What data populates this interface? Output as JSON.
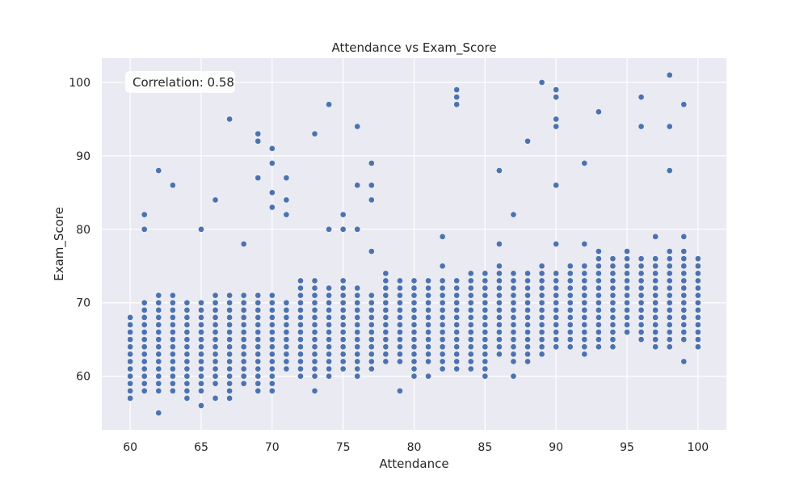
{
  "chart_data": {
    "type": "scatter",
    "title": "Attendance vs Exam_Score",
    "xlabel": "Attendance",
    "ylabel": "Exam_Score",
    "xlim": [
      58.0,
      102.0
    ],
    "ylim": [
      52.7,
      103.3
    ],
    "xticks": [
      60,
      65,
      70,
      75,
      80,
      85,
      90,
      95,
      100
    ],
    "yticks": [
      60,
      70,
      80,
      90,
      100
    ],
    "grid": true,
    "annotation": "Correlation: 0.58",
    "colors": {
      "background": "#eaeaf2",
      "grid": "#ffffff",
      "point": "#4c72b0",
      "annotation_box": "#ffffff"
    },
    "band_ranges": [
      [
        60,
        57,
        68
      ],
      [
        61,
        58,
        70
      ],
      [
        62,
        58,
        71
      ],
      [
        63,
        58,
        71
      ],
      [
        64,
        57,
        70
      ],
      [
        65,
        58,
        70
      ],
      [
        66,
        59,
        71
      ],
      [
        67,
        58,
        71
      ],
      [
        68,
        59,
        71
      ],
      [
        69,
        58,
        71
      ],
      [
        70,
        58,
        71
      ],
      [
        71,
        61,
        70
      ],
      [
        72,
        60,
        73
      ],
      [
        73,
        60,
        73
      ],
      [
        74,
        60,
        72
      ],
      [
        75,
        61,
        73
      ],
      [
        76,
        60,
        72
      ],
      [
        77,
        61,
        71
      ],
      [
        78,
        62,
        74
      ],
      [
        79,
        62,
        73
      ],
      [
        80,
        61,
        73
      ],
      [
        81,
        62,
        73
      ],
      [
        82,
        61,
        73
      ],
      [
        83,
        61,
        73
      ],
      [
        84,
        61,
        74
      ],
      [
        85,
        61,
        74
      ],
      [
        86,
        63,
        75
      ],
      [
        87,
        62,
        74
      ],
      [
        88,
        62,
        74
      ],
      [
        89,
        63,
        75
      ],
      [
        90,
        64,
        74
      ],
      [
        91,
        64,
        75
      ],
      [
        92,
        64,
        75
      ],
      [
        93,
        64,
        77
      ],
      [
        94,
        64,
        76
      ],
      [
        95,
        66,
        77
      ],
      [
        96,
        66,
        76
      ],
      [
        97,
        64,
        76
      ],
      [
        98,
        64,
        77
      ],
      [
        99,
        65,
        77
      ],
      [
        100,
        64,
        76
      ]
    ],
    "outliers": [
      [
        60,
        58
      ],
      [
        60,
        57
      ],
      [
        61,
        82
      ],
      [
        61,
        80
      ],
      [
        62,
        88
      ],
      [
        62,
        55
      ],
      [
        63,
        86
      ],
      [
        64,
        57
      ],
      [
        65,
        80
      ],
      [
        65,
        56
      ],
      [
        66,
        84
      ],
      [
        66,
        57
      ],
      [
        67,
        95
      ],
      [
        67,
        57
      ],
      [
        68,
        78
      ],
      [
        69,
        93
      ],
      [
        69,
        92
      ],
      [
        69,
        87
      ],
      [
        70,
        91
      ],
      [
        70,
        89
      ],
      [
        70,
        85
      ],
      [
        70,
        83
      ],
      [
        71,
        87
      ],
      [
        71,
        84
      ],
      [
        71,
        82
      ],
      [
        73,
        93
      ],
      [
        73,
        58
      ],
      [
        74,
        97
      ],
      [
        74,
        80
      ],
      [
        75,
        82
      ],
      [
        75,
        80
      ],
      [
        76,
        94
      ],
      [
        76,
        86
      ],
      [
        76,
        80
      ],
      [
        77,
        89
      ],
      [
        77,
        86
      ],
      [
        77,
        84
      ],
      [
        77,
        77
      ],
      [
        79,
        58
      ],
      [
        80,
        60
      ],
      [
        81,
        60
      ],
      [
        82,
        79
      ],
      [
        82,
        75
      ],
      [
        83,
        99
      ],
      [
        83,
        98
      ],
      [
        83,
        97
      ],
      [
        84,
        62
      ],
      [
        85,
        60
      ],
      [
        86,
        88
      ],
      [
        86,
        78
      ],
      [
        87,
        82
      ],
      [
        87,
        60
      ],
      [
        88,
        92
      ],
      [
        89,
        100
      ],
      [
        90,
        99
      ],
      [
        90,
        98
      ],
      [
        90,
        95
      ],
      [
        90,
        94
      ],
      [
        90,
        86
      ],
      [
        90,
        78
      ],
      [
        92,
        89
      ],
      [
        92,
        78
      ],
      [
        92,
        63
      ],
      [
        93,
        96
      ],
      [
        96,
        98
      ],
      [
        96,
        94
      ],
      [
        96,
        65
      ],
      [
        97,
        79
      ],
      [
        98,
        101
      ],
      [
        98,
        94
      ],
      [
        98,
        88
      ],
      [
        99,
        97
      ],
      [
        99,
        79
      ],
      [
        99,
        62
      ]
    ]
  }
}
